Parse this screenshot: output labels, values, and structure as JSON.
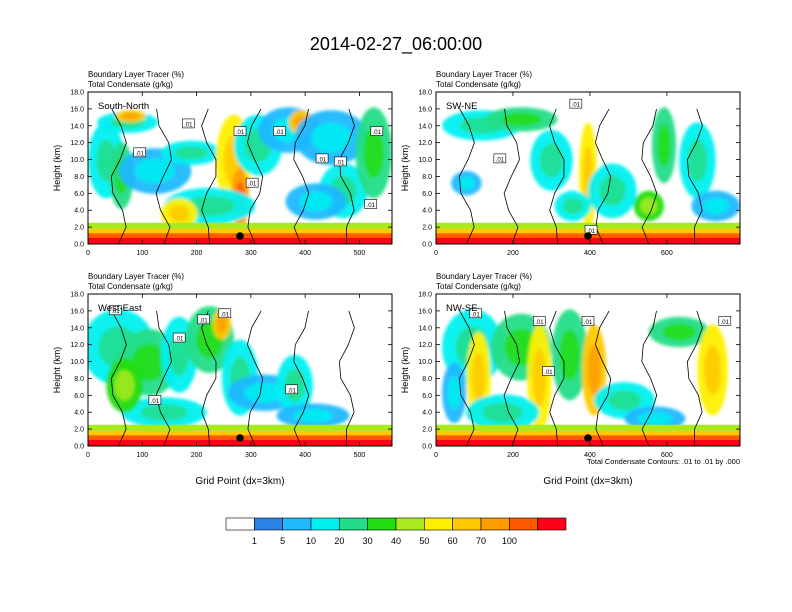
{
  "title": "2014-02-27_06:00:00",
  "chart_data": [
    {
      "type": "heatmap",
      "subtitle_fill": "Boundary Layer Tracer   (%)",
      "subtitle_contour": "Total Condensate   (g/kg)",
      "panel_label": "South-North",
      "ylabel": "Height (km)",
      "xlabel": "",
      "ylim": [
        0,
        18
      ],
      "xlim": [
        0,
        560
      ],
      "xticks": [
        "0",
        "100",
        "200",
        "300",
        "400",
        "500"
      ],
      "contour_labels": [
        ".01",
        ".01",
        ".01",
        ".01",
        ".01",
        ".01",
        ".01",
        ".01",
        ".01"
      ],
      "marker_x": 280
    },
    {
      "type": "heatmap",
      "subtitle_fill": "Boundary Layer Tracer   (%)",
      "subtitle_contour": "Total Condensate   (g/kg)",
      "panel_label": "SW-NE",
      "ylabel": "Height (km)",
      "xlabel": "",
      "ylim": [
        0,
        18
      ],
      "xlim": [
        0,
        790
      ],
      "xticks": [
        "0",
        "200",
        "400",
        "600"
      ],
      "contour_labels": [
        ".01",
        ".01",
        ".01"
      ],
      "marker_x": 395
    },
    {
      "type": "heatmap",
      "subtitle_fill": "Boundary Layer Tracer   (%)",
      "subtitle_contour": "Total Condensate   (g/kg)",
      "panel_label": "West-East",
      "ylabel": "Height (km)",
      "xlabel": "Grid Point (dx=3km)",
      "ylim": [
        0,
        18
      ],
      "xlim": [
        0,
        560
      ],
      "xticks": [
        "0",
        "100",
        "200",
        "300",
        "400",
        "500"
      ],
      "contour_labels": [
        ".01",
        ".01",
        ".01",
        ".01",
        ".01",
        ".01"
      ],
      "marker_x": 280
    },
    {
      "type": "heatmap",
      "subtitle_fill": "Boundary Layer Tracer   (%)",
      "subtitle_contour": "Total Condensate   (g/kg)",
      "panel_label": "NW-SE",
      "ylabel": "Height (km)",
      "xlabel": "Grid Point (dx=3km)",
      "ylim": [
        0,
        18
      ],
      "xlim": [
        0,
        790
      ],
      "xticks": [
        "0",
        "200",
        "400",
        "600"
      ],
      "contour_labels": [
        ".01",
        ".01",
        ".01",
        ".01",
        ".01"
      ],
      "marker_x": 395
    }
  ],
  "yticks": [
    "0.0",
    "2.0",
    "4.0",
    "6.0",
    "8.0",
    "10.0",
    "12.0",
    "14.0",
    "16.0",
    "18.0"
  ],
  "contour_note": "Total Condensate Contours: .01 to .01 by .000",
  "colorbar": {
    "colors": [
      "#ffffff",
      "#2b83e8",
      "#1fb8ff",
      "#00f0f0",
      "#22dd88",
      "#22dd11",
      "#a8ea1e",
      "#fff000",
      "#ffc800",
      "#ff9c00",
      "#ff5a00",
      "#ff0018"
    ],
    "labels": [
      "1",
      "5",
      "10",
      "20",
      "30",
      "40",
      "50",
      "60",
      "70",
      "100"
    ]
  }
}
